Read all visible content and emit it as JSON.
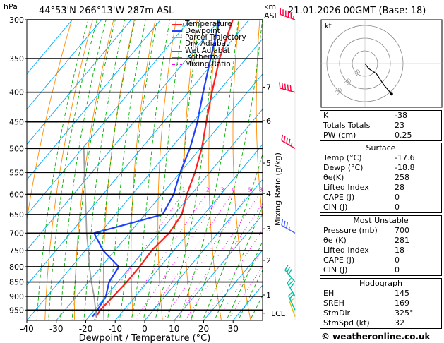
{
  "header": {
    "location": "44°53'N  266°13'W  287m  ASL",
    "datetime": "21.01.2026  00GMT  (Base: 18)",
    "hpa_unit": "hPa",
    "km_unit": "km",
    "asl_unit": "ASL"
  },
  "colors": {
    "temperature": "#ff2020",
    "dewpoint": "#2040ff",
    "parcel": "#a0a0a0",
    "dry_adiabat": "#ff8c00",
    "wet_adiabat": "#00b000",
    "isotherm": "#00aaff",
    "mixing_ratio": "#ff00ff",
    "wind": "#ff0040"
  },
  "legend": [
    {
      "label": "Temperature",
      "color": "#ff2020",
      "style": "solid"
    },
    {
      "label": "Dewpoint",
      "color": "#2040ff",
      "style": "solid"
    },
    {
      "label": "Parcel Trajectory",
      "color": "#a0a0a0",
      "style": "solid"
    },
    {
      "label": "Dry Adiabat",
      "color": "#ff8c00",
      "style": "solid"
    },
    {
      "label": "Wet Adiabat",
      "color": "#00b000",
      "style": "solid"
    },
    {
      "label": "Isotherm",
      "color": "#00aaff",
      "style": "solid"
    },
    {
      "label": "Mixing Ratio",
      "color": "#ff00ff",
      "style": "dotted"
    }
  ],
  "chart_data": {
    "type": "line",
    "title": "Skew-T log-P diagram",
    "xlabel": "Dewpoint / Temperature (°C)",
    "ylabel": "hPa",
    "xlim": [
      -40,
      40
    ],
    "ylim": [
      975,
      300
    ],
    "x_ticks": [
      "-40",
      "-30",
      "-20",
      "-10",
      "0",
      "10",
      "20",
      "30"
    ],
    "x_tick_values": [
      -40,
      -30,
      -20,
      -10,
      0,
      10,
      20,
      30
    ],
    "pressure_levels": [
      300,
      350,
      400,
      450,
      500,
      550,
      600,
      650,
      700,
      750,
      800,
      850,
      900,
      950
    ],
    "km_ticks": [
      {
        "label": "7",
        "p": 392
      },
      {
        "label": "6",
        "p": 448
      },
      {
        "label": "5",
        "p": 530
      },
      {
        "label": "4",
        "p": 598
      },
      {
        "label": "3",
        "p": 688
      },
      {
        "label": "2",
        "p": 780
      },
      {
        "label": "1",
        "p": 895
      },
      {
        "label": "LCL",
        "p": 962
      }
    ],
    "mixing_ratio_label": "Mixing Ratio (g/kg)",
    "mixing_ratio_values": [
      "1",
      "2",
      "3",
      "4",
      "6",
      "8",
      "10",
      "15",
      "20",
      "25"
    ],
    "mixing_ratio_numbers": [
      1,
      2,
      3,
      4,
      6,
      8,
      10,
      15,
      20,
      25
    ],
    "series": [
      {
        "name": "Temperature",
        "points": [
          [
            975,
            -17.6
          ],
          [
            950,
            -18.0
          ],
          [
            900,
            -17.5
          ],
          [
            850,
            -17.0
          ],
          [
            800,
            -17.0
          ],
          [
            750,
            -17.5
          ],
          [
            700,
            -16.5
          ],
          [
            650,
            -17.5
          ],
          [
            600,
            -21.5
          ],
          [
            550,
            -25.0
          ],
          [
            500,
            -29.5
          ],
          [
            450,
            -35.5
          ],
          [
            400,
            -42.0
          ],
          [
            350,
            -49.0
          ],
          [
            300,
            -55.5
          ]
        ]
      },
      {
        "name": "Dewpoint",
        "points": [
          [
            975,
            -18.8
          ],
          [
            950,
            -19.0
          ],
          [
            900,
            -20.0
          ],
          [
            850,
            -23.0
          ],
          [
            800,
            -24.0
          ],
          [
            750,
            -34.0
          ],
          [
            700,
            -42.0
          ],
          [
            650,
            -24.0
          ],
          [
            600,
            -26.0
          ],
          [
            550,
            -30.0
          ],
          [
            500,
            -33.5
          ],
          [
            450,
            -38.5
          ],
          [
            400,
            -45.0
          ],
          [
            350,
            -52.0
          ],
          [
            300,
            -60.0
          ]
        ]
      },
      {
        "name": "Parcel Trajectory",
        "points": [
          [
            975,
            -17.6
          ],
          [
            962,
            -18.6
          ],
          [
            900,
            -24.0
          ],
          [
            850,
            -29.0
          ],
          [
            800,
            -34.0
          ],
          [
            750,
            -39.0
          ],
          [
            700,
            -44.5
          ],
          [
            650,
            -50.0
          ],
          [
            600,
            -56.0
          ],
          [
            550,
            -62.5
          ],
          [
            500,
            -69.5
          ]
        ]
      }
    ],
    "wind_barbs": [
      {
        "p": 300,
        "dir": 290,
        "speed": 55,
        "color": "#ff0040"
      },
      {
        "p": 400,
        "dir": 285,
        "speed": 50,
        "color": "#ff0040"
      },
      {
        "p": 500,
        "dir": 300,
        "speed": 45,
        "color": "#ff0040"
      },
      {
        "p": 700,
        "dir": 300,
        "speed": 35,
        "color": "#4060ff"
      },
      {
        "p": 850,
        "dir": 320,
        "speed": 30,
        "color": "#00c0a0"
      },
      {
        "p": 900,
        "dir": 330,
        "speed": 30,
        "color": "#00c0a0"
      },
      {
        "p": 950,
        "dir": 335,
        "speed": 25,
        "color": "#00c0a0"
      },
      {
        "p": 975,
        "dir": 340,
        "speed": 10,
        "color": "#e0c000"
      }
    ],
    "hodograph": {
      "label": "kt",
      "ring_labels": [
        "10",
        "20",
        "30"
      ],
      "trace": [
        [
          0,
          0
        ],
        [
          -3,
          -4
        ],
        [
          -9,
          -8
        ],
        [
          -15,
          -17
        ],
        [
          -21,
          -24
        ]
      ]
    }
  },
  "indices": {
    "rows": [
      {
        "label": "K",
        "value": "-38"
      },
      {
        "label": "Totals Totals",
        "value": "23"
      },
      {
        "label": "PW (cm)",
        "value": "0.25"
      }
    ]
  },
  "surface": {
    "title": "Surface",
    "rows": [
      {
        "label": "Temp (°C)",
        "value": "-17.6"
      },
      {
        "label": "Dewp (°C)",
        "value": "-18.8"
      },
      {
        "label": "θe(K)",
        "value": "258"
      },
      {
        "label": "Lifted Index",
        "value": "28"
      },
      {
        "label": "CAPE (J)",
        "value": "0"
      },
      {
        "label": "CIN (J)",
        "value": "0"
      }
    ]
  },
  "most_unstable": {
    "title": "Most Unstable",
    "rows": [
      {
        "label": "Pressure (mb)",
        "value": "700"
      },
      {
        "label": "θe (K)",
        "value": "281"
      },
      {
        "label": "Lifted Index",
        "value": "18"
      },
      {
        "label": "CAPE (J)",
        "value": "0"
      },
      {
        "label": "CIN (J)",
        "value": "0"
      }
    ]
  },
  "hodograph_table": {
    "title": "Hodograph",
    "rows": [
      {
        "label": "EH",
        "value": "145"
      },
      {
        "label": "SREH",
        "value": "169"
      },
      {
        "label": "StmDir",
        "value": "325°"
      },
      {
        "label": "StmSpd (kt)",
        "value": "32"
      }
    ]
  },
  "footer": {
    "credit": "© weatheronline.co.uk"
  }
}
